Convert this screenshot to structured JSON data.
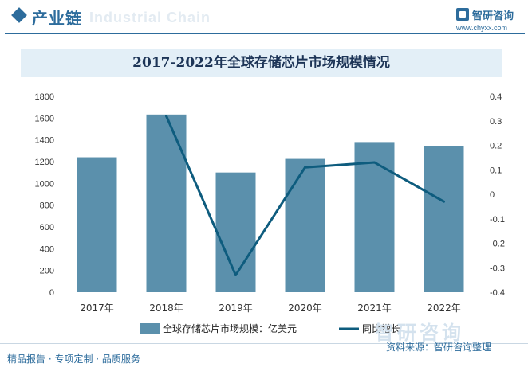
{
  "header": {
    "title": "产业链",
    "ghost_text": "Industrial Chain"
  },
  "logo": {
    "name": "智研咨询",
    "url": "www.chyxx.com"
  },
  "colors": {
    "accent": "#2d6c9c",
    "bar": "#5b90ac",
    "line": "#0e5c7e",
    "title_band": "#e3eff7"
  },
  "chart_data": {
    "type": "bar",
    "title": "2017-2022年全球存储芯片市场规模情况",
    "categories": [
      "2017年",
      "2018年",
      "2019年",
      "2020年",
      "2021年",
      "2022年"
    ],
    "series": [
      {
        "name": "全球存储芯片市场规模：亿美元",
        "type": "bar",
        "axis": "left",
        "values": [
          1240,
          1633,
          1100,
          1225,
          1380,
          1341
        ]
      },
      {
        "name": "同比增长",
        "type": "line",
        "axis": "right",
        "values": [
          null,
          0.32,
          -0.33,
          0.11,
          0.13,
          -0.03
        ]
      }
    ],
    "y_left": {
      "min": 0,
      "max": 1800,
      "ticks": [
        "0",
        "200",
        "400",
        "600",
        "800",
        "1000",
        "1200",
        "1400",
        "1600",
        "1800"
      ]
    },
    "y_right": {
      "min": -0.4,
      "max": 0.4,
      "ticks": [
        "-0.4",
        "-0.3",
        "-0.2",
        "-0.1",
        "0",
        "0.1",
        "0.2",
        "0.3",
        "0.4"
      ]
    },
    "grid": false,
    "legend_position": "bottom"
  },
  "footer": {
    "left": "精品报告 · 专项定制 · 品质服务",
    "source": "资料来源：智研咨询整理",
    "watermark": "智研咨询"
  }
}
